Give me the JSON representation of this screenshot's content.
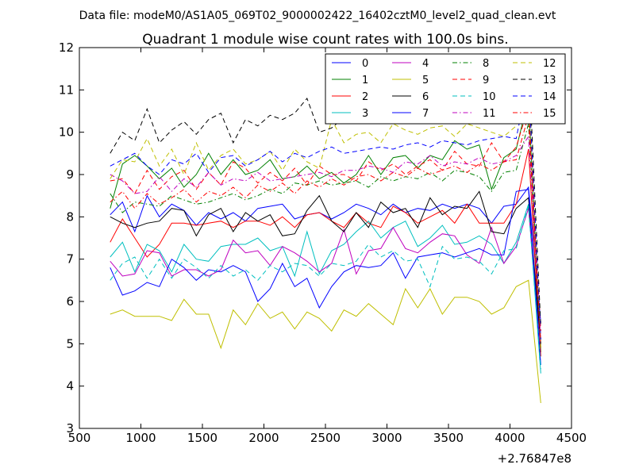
{
  "chart_data": {
    "type": "line",
    "suptitle": "Data file: modeM0/AS1A05_069T02_9000002422_16402cztM0_level2_quad_clean.evt",
    "title": "Quadrant 1 module wise count rates with 100.0s bins.",
    "xlabel": "",
    "ylabel": "",
    "x_offset_label": "+2.76847e8",
    "xlim": [
      500,
      4500
    ],
    "ylim": [
      3,
      12
    ],
    "xticks": [
      500,
      1000,
      1500,
      2000,
      2500,
      3000,
      3500,
      4000,
      4500
    ],
    "yticks": [
      3,
      4,
      5,
      6,
      7,
      8,
      9,
      10,
      11,
      12
    ],
    "legend_position": "top-right",
    "x": [
      750,
      850,
      950,
      1050,
      1150,
      1250,
      1350,
      1450,
      1550,
      1650,
      1750,
      1850,
      1950,
      2050,
      2150,
      2250,
      2350,
      2450,
      2550,
      2650,
      2750,
      2850,
      2950,
      3050,
      3150,
      3250,
      3350,
      3450,
      3550,
      3650,
      3750,
      3850,
      3950,
      4050,
      4150,
      4250
    ],
    "series": [
      {
        "name": "0",
        "color": "#0000ff",
        "dash": "solid",
        "values": [
          8.05,
          8.35,
          7.65,
          8.5,
          8.0,
          8.3,
          8.15,
          7.8,
          8.1,
          7.95,
          8.1,
          7.9,
          8.2,
          8.25,
          8.3,
          7.95,
          8.05,
          8.1,
          7.95,
          8.1,
          8.3,
          8.2,
          8.05,
          8.3,
          8.1,
          8.2,
          8.15,
          8.3,
          8.2,
          8.3,
          8.2,
          7.85,
          8.25,
          8.3,
          8.7,
          5.5
        ]
      },
      {
        "name": "1",
        "color": "#008000",
        "dash": "solid",
        "values": [
          8.2,
          9.25,
          9.45,
          9.2,
          8.9,
          9.15,
          8.7,
          9.0,
          9.5,
          9.0,
          9.35,
          9.0,
          9.1,
          9.35,
          8.9,
          8.95,
          9.2,
          8.9,
          9.05,
          8.8,
          9.0,
          9.45,
          9.0,
          9.4,
          9.45,
          9.15,
          9.45,
          9.35,
          9.8,
          9.6,
          9.7,
          8.65,
          9.4,
          9.6,
          10.8,
          4.8
        ]
      },
      {
        "name": "2",
        "color": "#ff0000",
        "dash": "solid",
        "values": [
          7.4,
          7.95,
          7.5,
          7.05,
          7.35,
          7.85,
          7.85,
          7.8,
          7.85,
          7.9,
          7.75,
          7.9,
          7.9,
          7.8,
          8.0,
          7.75,
          8.05,
          8.1,
          7.9,
          7.75,
          8.1,
          7.85,
          7.75,
          8.25,
          8.1,
          7.85,
          8.0,
          8.15,
          7.85,
          8.3,
          7.85,
          7.85,
          7.85,
          8.3,
          9.6,
          4.7
        ]
      },
      {
        "name": "3",
        "color": "#00bfbf",
        "dash": "solid",
        "values": [
          7.05,
          7.4,
          6.7,
          7.35,
          7.2,
          6.7,
          7.35,
          7.0,
          6.95,
          7.3,
          7.35,
          7.35,
          7.5,
          7.2,
          7.3,
          6.6,
          7.65,
          6.65,
          7.2,
          7.35,
          7.65,
          7.9,
          7.5,
          7.75,
          7.9,
          7.3,
          7.5,
          7.8,
          7.35,
          7.4,
          7.55,
          7.35,
          6.9,
          7.4,
          8.3,
          4.3
        ]
      },
      {
        "name": "4",
        "color": "#bf00bf",
        "dash": "solid",
        "values": [
          6.95,
          6.6,
          6.65,
          7.2,
          7.15,
          6.6,
          6.75,
          6.75,
          6.6,
          6.75,
          7.45,
          7.15,
          7.2,
          6.85,
          7.3,
          7.15,
          6.95,
          6.7,
          6.9,
          7.7,
          6.65,
          7.2,
          7.25,
          7.75,
          7.25,
          7.15,
          7.4,
          7.6,
          7.55,
          7.1,
          6.9,
          7.75,
          6.9,
          7.3,
          8.2,
          4.9
        ]
      },
      {
        "name": "5",
        "color": "#bfbf00",
        "dash": "solid",
        "values": [
          5.7,
          5.8,
          5.65,
          5.65,
          5.65,
          5.55,
          6.05,
          5.7,
          5.7,
          4.9,
          5.8,
          5.45,
          5.95,
          5.6,
          5.75,
          5.35,
          5.75,
          5.6,
          5.3,
          5.8,
          5.65,
          5.95,
          5.7,
          5.45,
          6.3,
          5.85,
          6.3,
          5.7,
          6.1,
          6.1,
          6.0,
          5.7,
          5.85,
          6.35,
          6.5,
          3.6
        ]
      },
      {
        "name": "6",
        "color": "#000000",
        "dash": "solid",
        "values": [
          8.0,
          7.85,
          7.75,
          7.85,
          7.9,
          8.2,
          8.15,
          7.55,
          8.05,
          8.2,
          7.65,
          8.1,
          7.9,
          8.05,
          7.55,
          7.6,
          8.15,
          8.5,
          7.9,
          7.65,
          8.1,
          7.75,
          8.35,
          8.1,
          8.2,
          7.75,
          8.45,
          8.05,
          8.25,
          8.2,
          8.6,
          7.65,
          7.6,
          8.2,
          8.45,
          5.0
        ]
      },
      {
        "name": "7",
        "color": "#0000ff",
        "dash": "solid",
        "values": [
          6.8,
          6.15,
          6.25,
          6.45,
          6.35,
          7.0,
          6.8,
          6.5,
          6.75,
          6.7,
          6.85,
          6.7,
          6.0,
          6.3,
          6.9,
          6.35,
          6.55,
          5.85,
          6.35,
          6.7,
          6.85,
          6.8,
          6.85,
          7.15,
          6.55,
          7.05,
          7.1,
          7.15,
          7.05,
          7.15,
          7.25,
          7.1,
          7.1,
          8.6,
          8.65,
          4.5
        ]
      },
      {
        "name": "8",
        "color": "#008000",
        "dash": "dashdot",
        "values": [
          8.55,
          8.1,
          8.35,
          8.3,
          8.25,
          8.5,
          8.4,
          8.3,
          8.35,
          8.45,
          8.55,
          8.4,
          8.5,
          8.65,
          8.55,
          8.8,
          8.75,
          8.85,
          8.75,
          8.8,
          8.85,
          8.7,
          8.95,
          8.85,
          8.95,
          8.9,
          9.05,
          8.85,
          9.1,
          9.05,
          8.95,
          8.6,
          9.05,
          9.1,
          10.2,
          4.9
        ]
      },
      {
        "name": "9",
        "color": "#ff0000",
        "dash": "dashed",
        "values": [
          8.85,
          8.9,
          8.55,
          9.1,
          8.65,
          8.95,
          9.1,
          8.65,
          9.05,
          8.75,
          9.3,
          9.15,
          8.8,
          9.05,
          8.85,
          9.15,
          8.75,
          9.2,
          9.0,
          9.0,
          8.85,
          9.3,
          9.1,
          9.25,
          9.0,
          9.2,
          9.35,
          9.1,
          9.55,
          9.25,
          9.2,
          9.75,
          9.3,
          9.65,
          10.6,
          5.3
        ]
      },
      {
        "name": "10",
        "color": "#00bfbf",
        "dash": "dashed",
        "values": [
          6.5,
          6.9,
          7.05,
          6.55,
          7.0,
          6.55,
          7.0,
          6.8,
          6.55,
          6.85,
          6.6,
          6.75,
          6.5,
          6.85,
          6.7,
          6.9,
          6.85,
          6.6,
          6.9,
          6.85,
          6.95,
          7.35,
          7.05,
          7.2,
          6.95,
          7.0,
          6.35,
          7.3,
          7.0,
          7.05,
          6.95,
          6.65,
          7.2,
          7.25,
          8.25,
          4.4
        ]
      },
      {
        "name": "11",
        "color": "#bf00bf",
        "dash": "dashdot",
        "values": [
          9.0,
          8.85,
          8.55,
          8.6,
          8.95,
          8.6,
          8.9,
          8.7,
          9.05,
          8.75,
          8.9,
          8.85,
          9.05,
          8.85,
          8.9,
          8.95,
          9.0,
          9.05,
          8.95,
          9.1,
          9.1,
          9.2,
          9.15,
          9.05,
          9.3,
          9.25,
          9.45,
          9.2,
          9.3,
          9.25,
          9.4,
          9.25,
          9.3,
          9.45,
          9.9,
          5.1
        ]
      },
      {
        "name": "12",
        "color": "#bfbf00",
        "dash": "dashed",
        "values": [
          8.9,
          9.35,
          9.3,
          9.85,
          9.2,
          9.6,
          9.0,
          9.75,
          9.1,
          9.45,
          9.6,
          9.25,
          9.35,
          9.55,
          9.1,
          9.6,
          9.3,
          9.15,
          10.3,
          9.75,
          9.95,
          10.0,
          9.75,
          10.2,
          10.05,
          9.95,
          10.1,
          10.15,
          9.9,
          10.2,
          10.1,
          10.0,
          9.9,
          10.15,
          11.6,
          4.9
        ]
      },
      {
        "name": "13",
        "color": "#000000",
        "dash": "dashed",
        "values": [
          9.5,
          10.0,
          9.8,
          10.55,
          9.75,
          10.05,
          10.25,
          9.95,
          10.3,
          10.45,
          9.75,
          10.3,
          10.15,
          10.4,
          10.3,
          10.45,
          10.8,
          10.0,
          10.1,
          10.35,
          10.45,
          10.55,
          10.6,
          10.55,
          10.8,
          10.6,
          10.7,
          10.75,
          10.6,
          10.8,
          10.85,
          10.7,
          10.95,
          11.1,
          11.8,
          5.4
        ]
      },
      {
        "name": "14",
        "color": "#0000ff",
        "dash": "dashed",
        "values": [
          9.2,
          9.35,
          9.5,
          9.2,
          9.0,
          9.35,
          9.25,
          9.5,
          9.05,
          9.4,
          9.45,
          9.2,
          9.35,
          9.55,
          9.3,
          9.5,
          9.4,
          9.55,
          9.65,
          9.5,
          9.55,
          9.6,
          9.65,
          9.6,
          9.7,
          9.75,
          9.65,
          9.8,
          9.75,
          9.7,
          9.8,
          9.85,
          9.9,
          9.85,
          11.3,
          5.1
        ]
      },
      {
        "name": "15",
        "color": "#ff0000",
        "dash": "dashdot",
        "values": [
          8.35,
          8.6,
          8.2,
          8.55,
          8.3,
          8.45,
          8.65,
          8.35,
          8.6,
          8.5,
          8.7,
          8.45,
          8.75,
          8.6,
          8.8,
          8.55,
          8.85,
          8.7,
          8.9,
          8.75,
          8.95,
          9.0,
          8.85,
          9.05,
          8.95,
          9.15,
          9.0,
          9.1,
          9.2,
          9.05,
          9.25,
          9.1,
          9.3,
          9.35,
          10.4,
          5.0
        ]
      }
    ]
  }
}
